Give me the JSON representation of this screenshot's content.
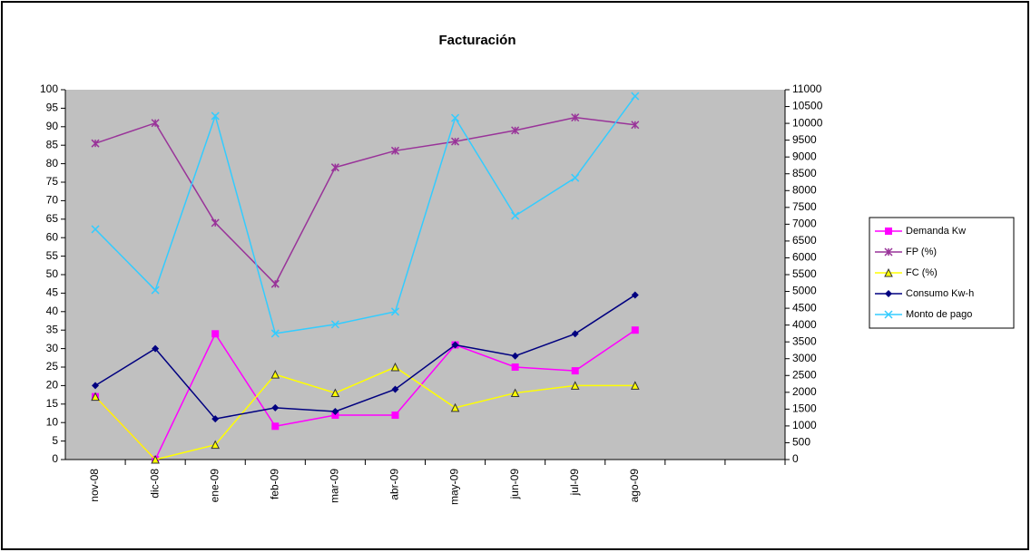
{
  "chart_data": {
    "type": "line",
    "title": "Facturación",
    "categories": [
      "nov-08",
      "dic-08",
      "ene-09",
      "feb-09",
      "mar-09",
      "abr-09",
      "may-09",
      "jun-09",
      "jul-09",
      "ago-09",
      null,
      null
    ],
    "series": [
      {
        "name": "Demanda Kw",
        "color": "#ff00ff",
        "marker": "square",
        "values": [
          17,
          0,
          34,
          9,
          12,
          12,
          31,
          25,
          24,
          35,
          null,
          null
        ]
      },
      {
        "name": "FP (%)",
        "color": "#993399",
        "marker": "star",
        "values": [
          85.5,
          91,
          64,
          47.5,
          79,
          83.5,
          86,
          89,
          92.5,
          90.5,
          null,
          null
        ]
      },
      {
        "name": "FC (%)",
        "color": "#ffff00",
        "marker": "triangle",
        "values": [
          17,
          0,
          4,
          23,
          18,
          25,
          14,
          18,
          20,
          20,
          null,
          null
        ]
      },
      {
        "name": "Consumo Kw-h",
        "color": "#000080",
        "marker": "diamond",
        "values": [
          20,
          30,
          11,
          14,
          13,
          19,
          31,
          28,
          34,
          44.5,
          null,
          null
        ]
      },
      {
        "name": "Monto de pago",
        "color": "#33ccff",
        "marker": "x",
        "axis": "y2",
        "values": [
          6850,
          5040,
          10220,
          3750,
          4020,
          4400,
          10160,
          7250,
          8380,
          10810,
          null,
          null
        ]
      }
    ],
    "ylim": [
      0,
      100
    ],
    "yticks": [
      0,
      5,
      10,
      15,
      20,
      25,
      30,
      35,
      40,
      45,
      50,
      55,
      60,
      65,
      70,
      75,
      80,
      85,
      90,
      95,
      100
    ],
    "y2lim": [
      0,
      11000
    ],
    "y2ticks": [
      0,
      500,
      1000,
      1500,
      2000,
      2500,
      3000,
      3500,
      4000,
      4500,
      5000,
      5500,
      6000,
      6500,
      7000,
      7500,
      8000,
      8500,
      9000,
      9500,
      10000,
      10500,
      11000
    ],
    "grid": false,
    "legend": "right",
    "plot_background": "#c0c0c0"
  }
}
